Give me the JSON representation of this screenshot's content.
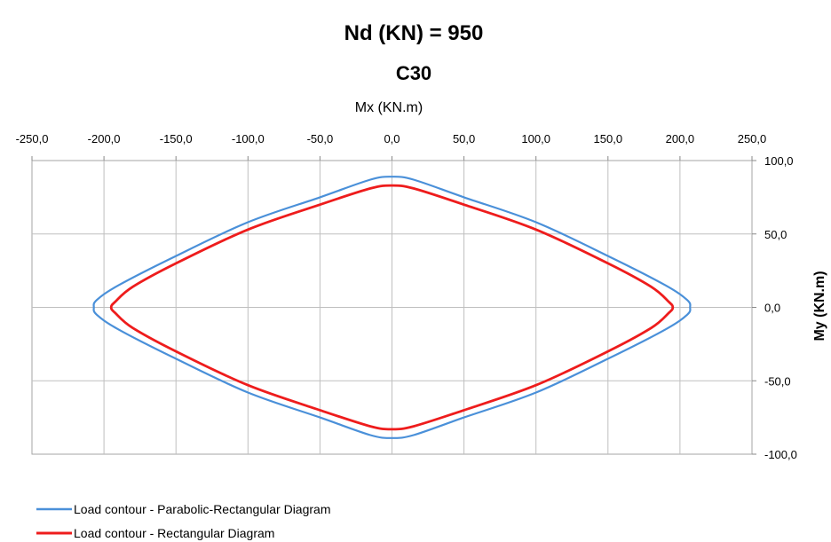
{
  "chart_data": {
    "type": "line",
    "title": "Nd (KN) = 950",
    "subtitle": "C30",
    "xlabel": "Mx (KN.m)",
    "ylabel": "My (KN.m)",
    "xlim": [
      -250,
      250
    ],
    "ylim": [
      -100,
      100
    ],
    "x_ticks": [
      "-250,0",
      "-200,0",
      "-150,0",
      "-100,0",
      "-50,0",
      "0,0",
      "50,0",
      "100,0",
      "150,0",
      "200,0",
      "250,0"
    ],
    "y_ticks": [
      "100,0",
      "50,0",
      "0,0",
      "-50,0",
      "-100,0"
    ],
    "x_axis_position": "top",
    "y_axis_position": "right",
    "grid": true,
    "legend_position": "bottom-left",
    "series": [
      {
        "name": "Load contour - Parabolic-Rectangular Diagram",
        "color": "#4a90d9",
        "x": [
          0,
          15,
          50,
          100,
          150,
          190,
          205,
          207,
          205,
          190,
          150,
          100,
          50,
          15,
          0,
          -15,
          -50,
          -100,
          -150,
          -190,
          -205,
          -207,
          -205,
          -190,
          -150,
          -100,
          -50,
          -15,
          0
        ],
        "y": [
          89,
          87,
          75,
          58,
          35,
          15,
          5,
          0,
          -5,
          -15,
          -35,
          -58,
          -75,
          -87,
          -89,
          -87,
          -75,
          -58,
          -35,
          -15,
          -5,
          0,
          5,
          15,
          35,
          58,
          75,
          87,
          89
        ]
      },
      {
        "name": "Load contour - Rectangular Diagram",
        "color": "#ee1c1c",
        "x": [
          0,
          15,
          50,
          100,
          150,
          180,
          192,
          195,
          192,
          180,
          150,
          100,
          50,
          15,
          0,
          -15,
          -50,
          -100,
          -150,
          -180,
          -192,
          -195,
          -192,
          -180,
          -150,
          -100,
          -50,
          -15,
          0
        ],
        "y": [
          83,
          81,
          70,
          53,
          30,
          14,
          4,
          0,
          -4,
          -14,
          -30,
          -53,
          -70,
          -81,
          -83,
          -81,
          -70,
          -53,
          -30,
          -14,
          -4,
          0,
          4,
          14,
          30,
          53,
          70,
          81,
          83
        ]
      }
    ]
  }
}
